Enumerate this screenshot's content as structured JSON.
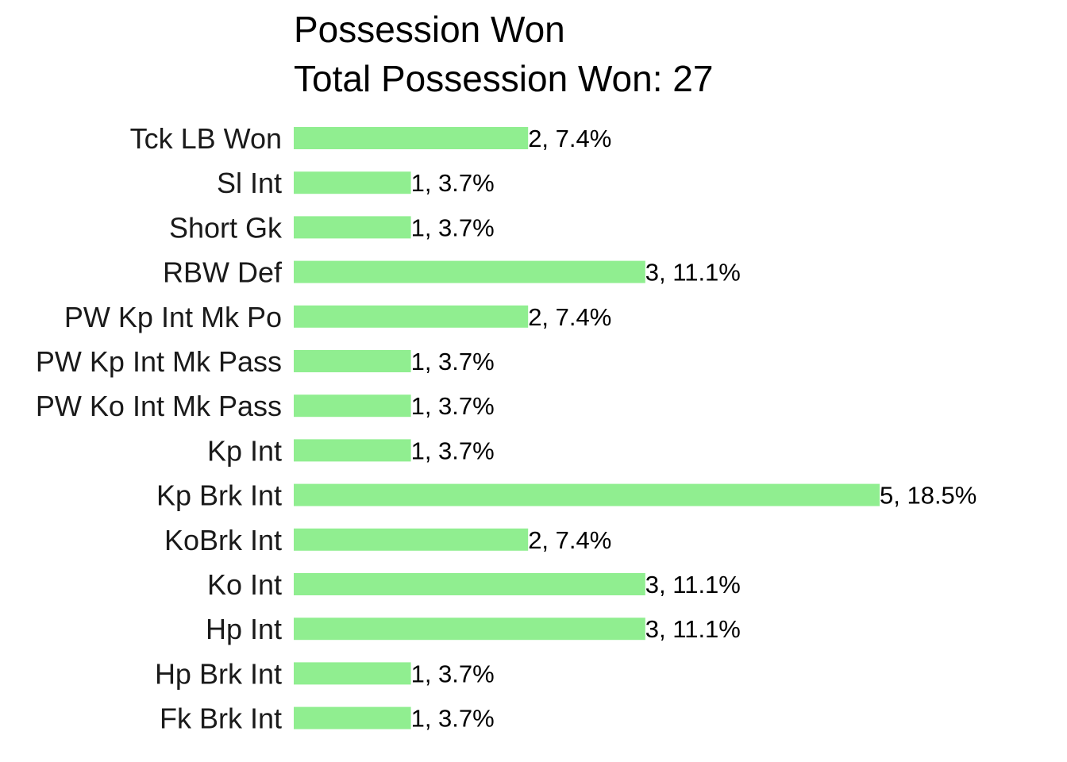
{
  "chart_data": {
    "type": "bar",
    "orientation": "horizontal",
    "title": "Possession Won",
    "subtitle": "Total Possession Won: 27",
    "categories": [
      "Tck LB Won",
      "Sl Int",
      "Short Gk",
      "RBW Def",
      "PW Kp Int Mk Po",
      "PW Kp Int Mk Pass",
      "PW Ko Int Mk Pass",
      "Kp Int",
      "Kp Brk Int",
      "KoBrk Int",
      "Ko Int",
      "Hp Int",
      "Hp Brk Int",
      "Fk Brk Int"
    ],
    "values": [
      2,
      1,
      1,
      3,
      2,
      1,
      1,
      1,
      5,
      2,
      3,
      3,
      1,
      1
    ],
    "data_labels": [
      "2, 7.4%",
      "1, 3.7%",
      "1, 3.7%",
      "3, 11.1%",
      "2, 7.4%",
      "1, 3.7%",
      "1, 3.7%",
      "1, 3.7%",
      "5, 18.5%",
      "2, 7.4%",
      "3, 11.1%",
      "3, 11.1%",
      "1, 3.7%",
      "1, 3.7%"
    ],
    "xlim": [
      0,
      5
    ],
    "grid": false,
    "legend": "none",
    "bar_color": "#90EE90"
  }
}
